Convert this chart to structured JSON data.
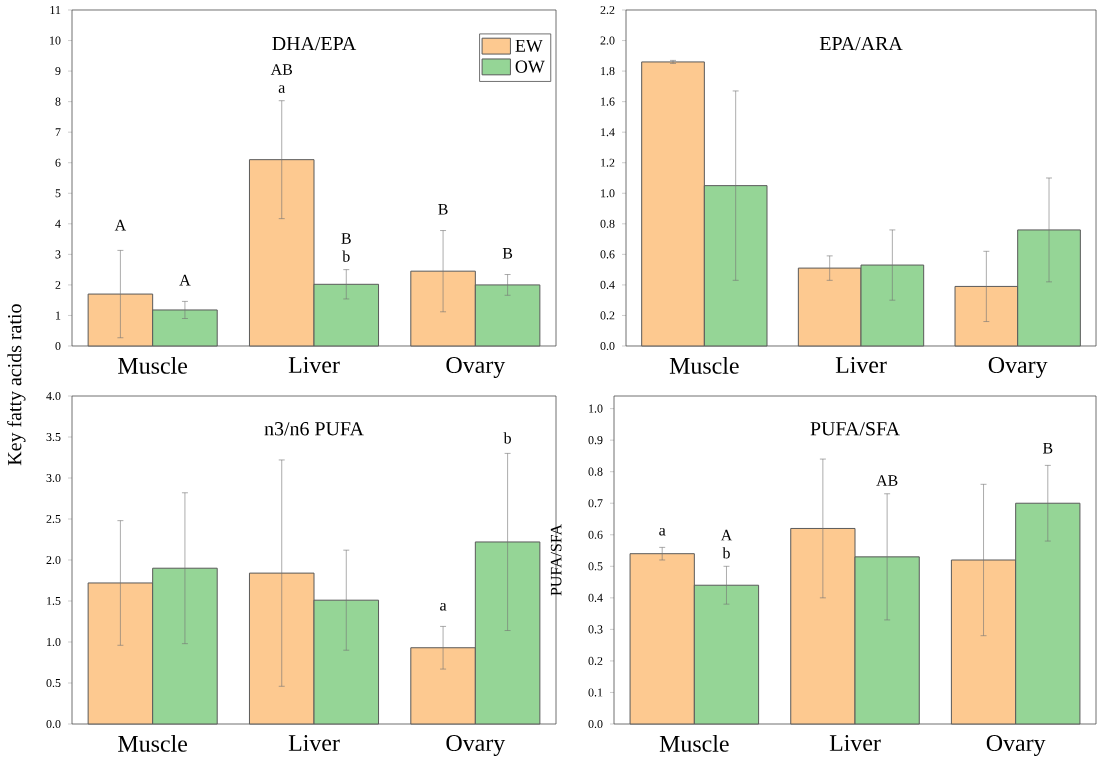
{
  "chart_data": [
    {
      "type": "bar",
      "title": "DHA/EPA",
      "ylabel": "Key fatty acids ratio",
      "categories": [
        "Muscle",
        "Liver",
        "Ovary"
      ],
      "series": [
        {
          "name": "EW",
          "color": "#fdc990",
          "values": [
            1.7,
            6.1,
            2.45
          ],
          "errors": [
            1.43,
            1.93,
            1.33
          ]
        },
        {
          "name": "OW",
          "color": "#95d596",
          "values": [
            1.18,
            2.02,
            2.0
          ],
          "errors": [
            0.28,
            0.48,
            0.34
          ]
        }
      ],
      "ylim": [
        0,
        11
      ],
      "yticks": [
        0,
        1,
        2,
        3,
        4,
        5,
        6,
        7,
        8,
        9,
        10,
        11
      ],
      "legend": "top right",
      "annotations": [
        "A",
        "A",
        "AB",
        "a",
        "B",
        "b",
        "B",
        "B"
      ]
    },
    {
      "type": "bar",
      "title": "EPA/ARA",
      "categories": [
        "Muscle",
        "Liver",
        "Ovary"
      ],
      "series": [
        {
          "color": "#fdc990",
          "values": [
            1.86,
            0.51,
            0.39
          ],
          "errors": [
            0.01,
            0.08,
            0.23
          ]
        },
        {
          "color": "#95d596",
          "values": [
            1.05,
            0.53,
            0.76
          ],
          "errors": [
            0.62,
            0.23,
            0.34
          ]
        }
      ],
      "ylim": [
        0,
        2.2
      ],
      "yticks": [
        {
          "value": 0,
          "label": "0.0"
        },
        0.2,
        0.4,
        0.6,
        0.8,
        {
          "value": 1,
          "label": "1.0"
        },
        1.2,
        1.4,
        1.6,
        1.8,
        {
          "value": 2,
          "label": "2.0"
        },
        2.2
      ]
    },
    {
      "type": "bar",
      "title": "n3/n6 PUFA",
      "categories": [
        "Muscle",
        "Liver",
        "Ovary"
      ],
      "series": [
        {
          "color": "#fdc990",
          "values": [
            1.72,
            1.84,
            0.93
          ],
          "errors": [
            0.76,
            1.38,
            0.26
          ]
        },
        {
          "color": "#95d596",
          "values": [
            1.9,
            1.51,
            2.22
          ],
          "errors": [
            0.92,
            0.61,
            1.08
          ]
        }
      ],
      "ylim": [
        0,
        4
      ],
      "yticks": [
        {
          "value": 0,
          "label": "0.0"
        },
        0.5,
        {
          "value": 1,
          "label": "1.0"
        },
        1.5,
        {
          "value": 2,
          "label": "2.0"
        },
        2.5,
        {
          "value": 3,
          "label": "3.0"
        },
        3.5,
        {
          "value": 4,
          "label": "4.0"
        }
      ],
      "annotations": [
        "a",
        "b"
      ]
    },
    {
      "type": "bar",
      "title": "PUFA/SFA",
      "ylabel": "PUFA/SFA",
      "categories": [
        "Muscle",
        "Liver",
        "Ovary"
      ],
      "series": [
        {
          "color": "#fdc990",
          "values": [
            0.54,
            0.62,
            0.52
          ],
          "errors": [
            0.02,
            0.22,
            0.24
          ]
        },
        {
          "color": "#95d596",
          "values": [
            0.44,
            0.53,
            0.7
          ],
          "errors": [
            0.06,
            0.2,
            0.12
          ]
        }
      ],
      "ylim": [
        0,
        1.04
      ],
      "yticks": [
        {
          "value": 0,
          "label": "0.0"
        },
        0.1,
        0.2,
        0.3,
        0.4,
        0.5,
        0.6,
        0.7,
        0.8,
        0.9,
        {
          "value": 1,
          "label": "1.0"
        }
      ],
      "annotations": [
        "a",
        "A",
        "b",
        "AB",
        "B"
      ]
    }
  ]
}
